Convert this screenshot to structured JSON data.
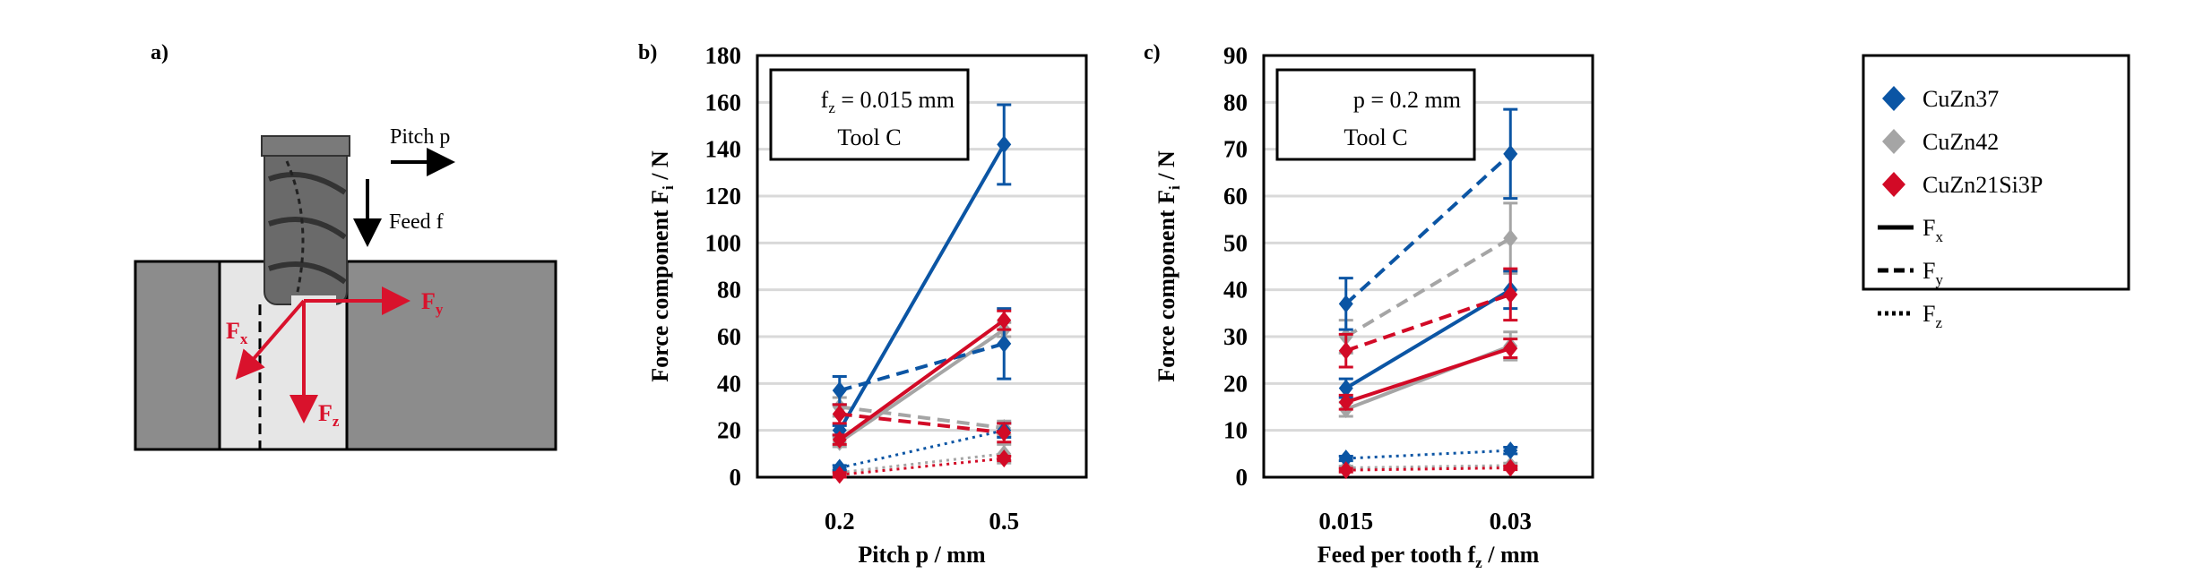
{
  "panel_labels": {
    "a": "a)",
    "b": "b)",
    "c": "c)"
  },
  "diagram": {
    "pitch_label": "Pitch p",
    "feed_label": "Feed f",
    "fx": "F",
    "fx_sub": "x",
    "fy": "F",
    "fy_sub": "y",
    "fz": "F",
    "fz_sub": "z"
  },
  "colors": {
    "CuZn37": "#0b55a4",
    "CuZn42": "#a5a5a5",
    "CuZn21Si3P": "#d20a26",
    "force_arrow": "#d9122c"
  },
  "legend": {
    "materials": [
      "CuZn37",
      "CuZn42",
      "CuZn21Si3P"
    ],
    "components": [
      {
        "main": "F",
        "sub": "x",
        "style": "solid"
      },
      {
        "main": "F",
        "sub": "y",
        "style": "dashed"
      },
      {
        "main": "F",
        "sub": "z",
        "style": "dotted"
      }
    ]
  },
  "chart_data": [
    {
      "type": "line",
      "id": "b",
      "annotation": {
        "line1_main": "f",
        "line1_sub": "z",
        "line1_rest": " = 0.015 mm",
        "line2": "Tool C"
      },
      "xlabel": "Pitch p / mm",
      "ylabel_main": "Force component F",
      "ylabel_sub": "i",
      "ylabel_rest": " / N",
      "categories": [
        "0.2",
        "0.5"
      ],
      "ylim": [
        0,
        180
      ],
      "yticks": [
        "0",
        "20",
        "40",
        "60",
        "80",
        "100",
        "120",
        "140",
        "160",
        "180"
      ],
      "grid": true,
      "series": [
        {
          "material": "CuZn37",
          "component": "Fx",
          "values": [
            20,
            142
          ],
          "err": [
            2,
            17
          ]
        },
        {
          "material": "CuZn37",
          "component": "Fy",
          "values": [
            37,
            57
          ],
          "err": [
            6,
            15
          ]
        },
        {
          "material": "CuZn37",
          "component": "Fz",
          "values": [
            4,
            20
          ],
          "err": [
            1,
            3
          ]
        },
        {
          "material": "CuZn42",
          "component": "Fx",
          "values": [
            15,
            63
          ],
          "err": [
            2,
            3
          ]
        },
        {
          "material": "CuZn42",
          "component": "Fy",
          "values": [
            30,
            21
          ],
          "err": [
            4,
            3
          ]
        },
        {
          "material": "CuZn42",
          "component": "Fz",
          "values": [
            2,
            10
          ],
          "err": [
            1,
            4
          ]
        },
        {
          "material": "CuZn21Si3P",
          "component": "Fx",
          "values": [
            16,
            67
          ],
          "err": [
            2,
            4
          ]
        },
        {
          "material": "CuZn21Si3P",
          "component": "Fy",
          "values": [
            27,
            19
          ],
          "err": [
            4,
            4
          ]
        },
        {
          "material": "CuZn21Si3P",
          "component": "Fz",
          "values": [
            1,
            8
          ],
          "err": [
            1,
            1
          ]
        }
      ]
    },
    {
      "type": "line",
      "id": "c",
      "annotation": {
        "line1_main": "p = 0.2 mm",
        "line1_sub": "",
        "line1_rest": "",
        "line2": "Tool C"
      },
      "xlabel": "Feed per tooth f",
      "xlabel_sub": "z",
      "xlabel_rest": " / mm",
      "ylabel_main": "Force component F",
      "ylabel_sub": "i",
      "ylabel_rest": " / N",
      "categories": [
        "0.015",
        "0.03"
      ],
      "ylim": [
        0,
        90
      ],
      "yticks": [
        "0",
        "10",
        "20",
        "30",
        "40",
        "50",
        "60",
        "70",
        "80",
        "90"
      ],
      "grid": true,
      "series": [
        {
          "material": "CuZn37",
          "component": "Fx",
          "values": [
            19,
            40
          ],
          "err": [
            2,
            4
          ]
        },
        {
          "material": "CuZn37",
          "component": "Fy",
          "values": [
            37,
            69
          ],
          "err": [
            5.5,
            9.5
          ]
        },
        {
          "material": "CuZn37",
          "component": "Fz",
          "values": [
            4,
            5.7
          ],
          "err": [
            0.5,
            0.7
          ]
        },
        {
          "material": "CuZn42",
          "component": "Fx",
          "values": [
            14.5,
            28
          ],
          "err": [
            1.5,
            3
          ]
        },
        {
          "material": "CuZn42",
          "component": "Fy",
          "values": [
            30,
            51
          ],
          "err": [
            3.5,
            7.5
          ]
        },
        {
          "material": "CuZn42",
          "component": "Fz",
          "values": [
            2,
            2.5
          ],
          "err": [
            0.4,
            0.5
          ]
        },
        {
          "material": "CuZn21Si3P",
          "component": "Fx",
          "values": [
            16,
            27.5
          ],
          "err": [
            1.5,
            2
          ]
        },
        {
          "material": "CuZn21Si3P",
          "component": "Fy",
          "values": [
            27,
            39
          ],
          "err": [
            3.5,
            5.5
          ]
        },
        {
          "material": "CuZn21Si3P",
          "component": "Fz",
          "values": [
            1.5,
            2
          ],
          "err": [
            0.4,
            0.4
          ]
        }
      ]
    }
  ]
}
